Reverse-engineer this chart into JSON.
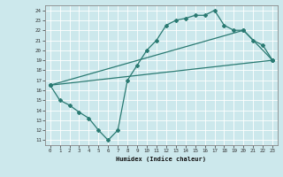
{
  "xlabel": "Humidex (Indice chaleur)",
  "bg_color": "#cce8ec",
  "grid_color": "#b8d8dc",
  "line_color": "#2a7a72",
  "xlim": [
    -0.5,
    23.5
  ],
  "ylim": [
    10.5,
    24.5
  ],
  "xticks": [
    0,
    1,
    2,
    3,
    4,
    5,
    6,
    7,
    8,
    9,
    10,
    11,
    12,
    13,
    14,
    15,
    16,
    17,
    18,
    19,
    20,
    21,
    22,
    23
  ],
  "yticks": [
    11,
    12,
    13,
    14,
    15,
    16,
    17,
    18,
    19,
    20,
    21,
    22,
    23,
    24
  ],
  "curve1_x": [
    0,
    1,
    2,
    3,
    4,
    5,
    6,
    7,
    8,
    9,
    10,
    11,
    12,
    13,
    14,
    15,
    16,
    17,
    18,
    19,
    20,
    21,
    22,
    23
  ],
  "curve1_y": [
    16.5,
    15.0,
    14.5,
    13.8,
    13.2,
    12.0,
    11.0,
    12.0,
    17.0,
    18.5,
    20.0,
    21.0,
    22.5,
    23.0,
    23.2,
    23.5,
    23.5,
    24.0,
    22.5,
    22.0,
    22.0,
    21.0,
    20.5,
    19.0
  ],
  "curve2_x": [
    0,
    23
  ],
  "curve2_y": [
    16.5,
    19.0
  ],
  "curve3_x": [
    0,
    20,
    23
  ],
  "curve3_y": [
    16.5,
    22.0,
    19.0
  ]
}
